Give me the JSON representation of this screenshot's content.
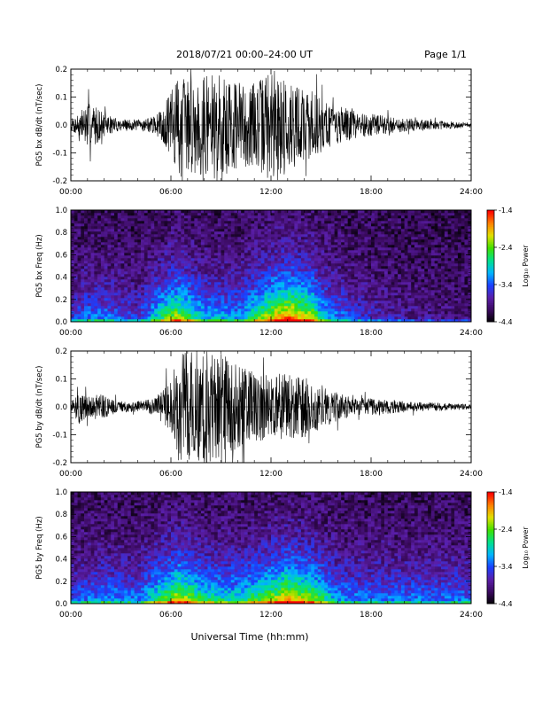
{
  "header": {
    "title": "2018/07/21  00:00–24:00 UT",
    "page": "Page 1/1"
  },
  "footer": {
    "xlabel": "Universal Time (hh:mm)"
  },
  "colors": {
    "trace": "#000000",
    "colormap": [
      "#000000",
      "#3a0a5e",
      "#5a1ea8",
      "#1a40ff",
      "#00b4ff",
      "#00e08c",
      "#40e000",
      "#e0e000",
      "#ff8000",
      "#ff0000"
    ]
  },
  "chart_data": [
    {
      "type": "line",
      "title": "",
      "xlabel": "",
      "ylabel": "PG5 bx dB/dt (nT/sec)",
      "xlim": [
        0,
        24
      ],
      "ylim": [
        -0.2,
        0.2
      ],
      "x_ticks": [
        "00:00",
        "06:00",
        "12:00",
        "18:00",
        "24:00"
      ],
      "y_ticks": [
        "-0.2",
        "-0.1",
        "0.0",
        "0.1",
        "0.2"
      ],
      "series": [
        {
          "x": [
            0,
            0.5,
            1,
            1.5,
            2,
            3,
            4,
            5,
            5.5,
            6,
            6.5,
            7,
            8,
            9,
            10,
            11,
            12,
            12.5,
            13,
            14,
            15,
            16,
            17,
            18,
            20,
            22,
            24
          ],
          "y_amplitude": [
            0.02,
            0.05,
            0.08,
            0.07,
            0.04,
            0.02,
            0.02,
            0.03,
            0.06,
            0.12,
            0.2,
            0.17,
            0.18,
            0.18,
            0.16,
            0.15,
            0.2,
            0.2,
            0.16,
            0.14,
            0.1,
            0.07,
            0.05,
            0.04,
            0.025,
            0.015,
            0.01
          ]
        }
      ]
    },
    {
      "type": "heatmap",
      "title": "",
      "xlabel": "",
      "ylabel": "PG5 bx Freq (Hz)",
      "xlim": [
        0,
        24
      ],
      "ylim": [
        0,
        1
      ],
      "x_ticks": [
        "00:00",
        "06:00",
        "12:00",
        "18:00",
        "24:00"
      ],
      "y_ticks": [
        "0.0",
        "0.2",
        "0.4",
        "0.6",
        "0.8",
        "1.0"
      ],
      "colorbar": {
        "label": "Log₁₀ Power",
        "range": [
          -4.4,
          -1.4
        ],
        "ticks": [
          "-1.4",
          "-2.4",
          "-3.4",
          "-4.4"
        ]
      },
      "activity_hours": [
        [
          0,
          0.2
        ],
        [
          1,
          0.3
        ],
        [
          2,
          0.3
        ],
        [
          4,
          0.2
        ],
        [
          6.3,
          0.7
        ],
        [
          8,
          0.4
        ],
        [
          10,
          0.35
        ],
        [
          12.3,
          0.8
        ],
        [
          13,
          0.9
        ],
        [
          14.5,
          0.7
        ],
        [
          15,
          0.45
        ],
        [
          17,
          0.2
        ],
        [
          20,
          0.1
        ],
        [
          24,
          0.05
        ]
      ]
    },
    {
      "type": "line",
      "title": "",
      "xlabel": "",
      "ylabel": "PG5 by dB/dt (nT/sec)",
      "xlim": [
        0,
        24
      ],
      "ylim": [
        -0.2,
        0.2
      ],
      "x_ticks": [
        "00:00",
        "06:00",
        "12:00",
        "18:00",
        "24:00"
      ],
      "y_ticks": [
        "-0.2",
        "-0.1",
        "0.0",
        "0.1",
        "0.2"
      ],
      "series": [
        {
          "x": [
            0,
            0.5,
            1,
            1.5,
            2,
            3,
            4,
            5,
            5.5,
            6,
            6.5,
            7,
            8,
            9,
            10,
            11,
            12,
            12.5,
            13,
            14,
            15,
            16,
            17,
            18,
            20,
            22,
            24
          ],
          "y_amplitude": [
            0.02,
            0.06,
            0.04,
            0.05,
            0.04,
            0.02,
            0.02,
            0.03,
            0.06,
            0.1,
            0.2,
            0.2,
            0.2,
            0.2,
            0.15,
            0.13,
            0.12,
            0.13,
            0.12,
            0.11,
            0.08,
            0.05,
            0.035,
            0.03,
            0.02,
            0.015,
            0.01
          ]
        }
      ]
    },
    {
      "type": "heatmap",
      "title": "",
      "xlabel": "",
      "ylabel": "PG5 by Freq (Hz)",
      "xlim": [
        0,
        24
      ],
      "ylim": [
        0,
        1
      ],
      "x_ticks": [
        "00:00",
        "06:00",
        "12:00",
        "18:00",
        "24:00"
      ],
      "y_ticks": [
        "0.0",
        "0.2",
        "0.4",
        "0.6",
        "0.8",
        "1.0"
      ],
      "colorbar": {
        "label": "Log₁₀ Power",
        "range": [
          -4.4,
          -1.4
        ],
        "ticks": [
          "-1.4",
          "-2.4",
          "-3.4",
          "-4.4"
        ]
      },
      "activity_hours": [
        [
          0,
          0.25
        ],
        [
          2,
          0.35
        ],
        [
          4,
          0.3
        ],
        [
          6.5,
          0.75
        ],
        [
          8,
          0.5
        ],
        [
          10,
          0.45
        ],
        [
          12.3,
          0.7
        ],
        [
          13,
          0.8
        ],
        [
          14.5,
          0.65
        ],
        [
          16,
          0.35
        ],
        [
          18,
          0.3
        ],
        [
          20,
          0.3
        ],
        [
          24,
          0.3
        ]
      ]
    }
  ]
}
